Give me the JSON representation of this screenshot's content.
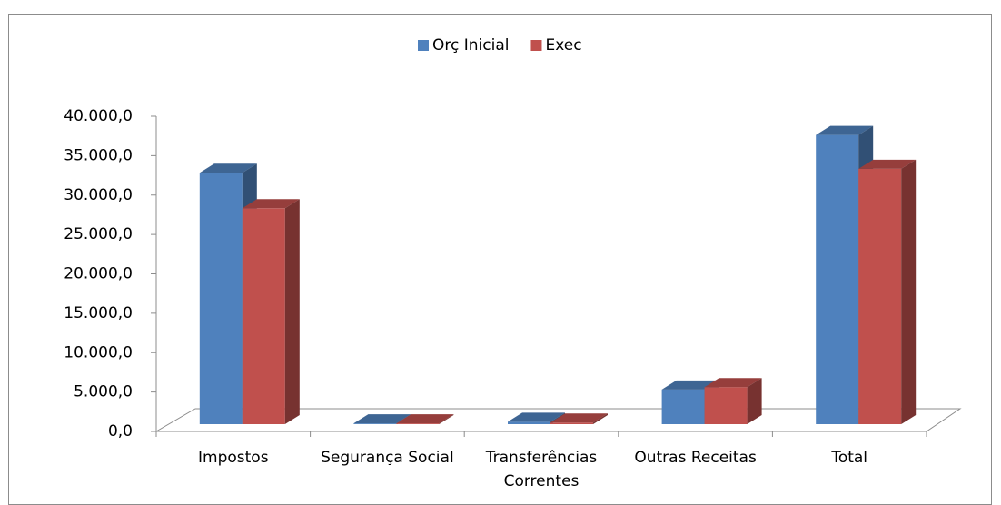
{
  "chart_data": {
    "type": "bar3d",
    "categories": [
      "Impostos",
      "Segurança Social",
      "Transferências Correntes",
      "Outras Receitas",
      "Total"
    ],
    "series": [
      {
        "name": "Orç Inicial",
        "color": "#4f81bd",
        "values": [
          31900,
          100,
          300,
          4400,
          36700
        ]
      },
      {
        "name": "Exec",
        "color": "#c0504d",
        "values": [
          27400,
          100,
          200,
          4700,
          32400
        ]
      }
    ],
    "ylim": [
      0,
      40000
    ],
    "yticks": [
      {
        "value": 0,
        "label": "0,0"
      },
      {
        "value": 5000,
        "label": "5.000,0"
      },
      {
        "value": 10000,
        "label": "10.000,0"
      },
      {
        "value": 15000,
        "label": "15.000,0"
      },
      {
        "value": 20000,
        "label": "20.000,0"
      },
      {
        "value": 25000,
        "label": "25.000,0"
      },
      {
        "value": 30000,
        "label": "30.000,0"
      },
      {
        "value": 35000,
        "label": "35.000,0"
      },
      {
        "value": 40000,
        "label": "40.000,0"
      }
    ],
    "legend": "top"
  }
}
